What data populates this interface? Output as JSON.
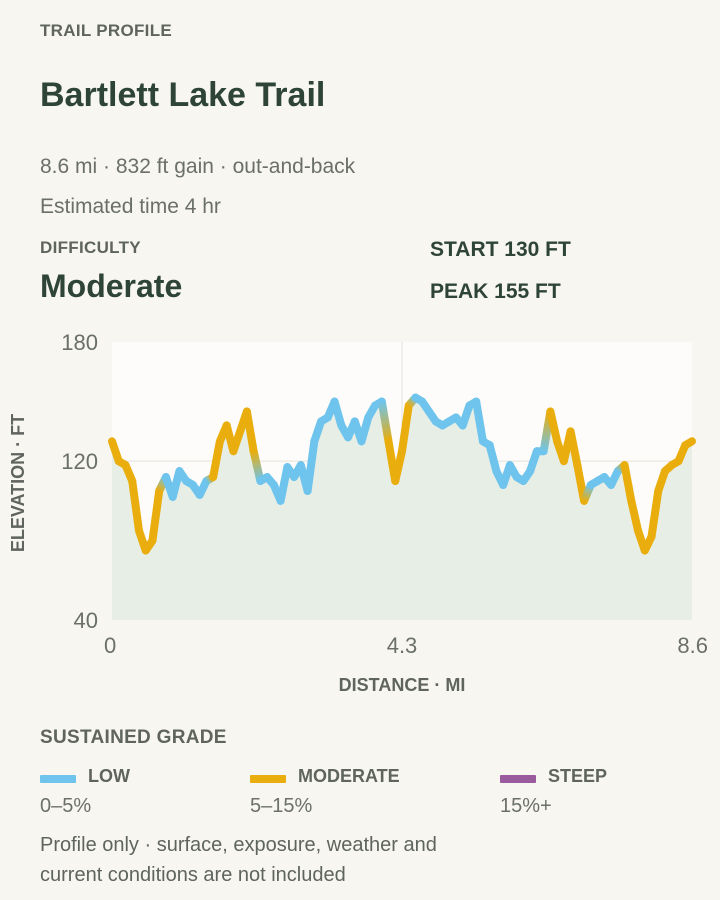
{
  "header": {
    "section_label": "TRAIL PROFILE"
  },
  "trail": {
    "name": "Bartlett Lake Trail",
    "stats_line": "8.6 mi · 832 ft gain · out-and-back",
    "time_line": "Estimated time 4 hr",
    "difficulty_label": "DIFFICULTY",
    "difficulty_value": "Moderate",
    "start_label": "START 130 FT",
    "peak_label": "PEAK 155 FT"
  },
  "chart_data": {
    "type": "line",
    "title": "",
    "xlabel": "DISTANCE · MI",
    "ylabel": "ELEVATION · FT",
    "xlim": [
      0,
      8.6
    ],
    "ylim": [
      40,
      180
    ],
    "x_ticks": [
      "0",
      "4.3",
      "8.6"
    ],
    "y_ticks": [
      "180",
      "120",
      "40"
    ],
    "grid": true,
    "area_fill": true,
    "x": [
      0,
      0.1,
      0.2,
      0.3,
      0.4,
      0.5,
      0.6,
      0.7,
      0.8,
      0.9,
      1.0,
      1.1,
      1.2,
      1.3,
      1.4,
      1.5,
      1.6,
      1.7,
      1.8,
      1.9,
      2.0,
      2.1,
      2.2,
      2.3,
      2.4,
      2.5,
      2.6,
      2.7,
      2.8,
      2.9,
      3.0,
      3.1,
      3.2,
      3.3,
      3.4,
      3.5,
      3.6,
      3.7,
      3.8,
      3.9,
      4.0,
      4.1,
      4.2,
      4.3,
      4.4,
      4.5,
      4.6,
      4.7,
      4.8,
      4.9,
      5.0,
      5.1,
      5.2,
      5.3,
      5.4,
      5.5,
      5.6,
      5.7,
      5.8,
      5.9,
      6.0,
      6.1,
      6.2,
      6.3,
      6.4,
      6.5,
      6.6,
      6.7,
      6.8,
      6.9,
      7.0,
      7.1,
      7.2,
      7.3,
      7.4,
      7.5,
      7.6,
      7.7,
      7.8,
      7.9,
      8.0,
      8.1,
      8.2,
      8.3,
      8.4,
      8.5,
      8.6
    ],
    "series": [
      {
        "values": [
          130,
          120,
          118,
          110,
          85,
          75,
          80,
          105,
          112,
          102,
          115,
          110,
          108,
          103,
          110,
          112,
          130,
          138,
          125,
          135,
          145,
          125,
          110,
          112,
          108,
          100,
          117,
          112,
          118,
          105,
          130,
          140,
          142,
          150,
          138,
          132,
          140,
          130,
          142,
          148,
          150,
          130,
          110,
          125,
          148,
          152,
          150,
          145,
          140,
          138,
          140,
          142,
          138,
          148,
          150,
          130,
          128,
          115,
          108,
          118,
          112,
          110,
          115,
          125,
          125,
          145,
          130,
          120,
          135,
          118,
          100,
          108,
          110,
          112,
          108,
          115,
          118,
          100,
          85,
          75,
          82,
          105,
          115,
          118,
          120,
          128,
          130
        ],
        "grade_colors": [
          "moderate",
          "moderate",
          "moderate",
          "moderate",
          "moderate",
          "moderate",
          "moderate",
          "moderate",
          "low",
          "low",
          "low",
          "low",
          "low",
          "low",
          "low",
          "moderate",
          "moderate",
          "moderate",
          "moderate",
          "moderate",
          "moderate",
          "moderate",
          "low",
          "low",
          "low",
          "low",
          "low",
          "low",
          "low",
          "low",
          "low",
          "low",
          "low",
          "low",
          "low",
          "low",
          "low",
          "low",
          "low",
          "low",
          "low",
          "moderate",
          "moderate",
          "moderate",
          "moderate",
          "low",
          "low",
          "low",
          "low",
          "low",
          "low",
          "low",
          "low",
          "low",
          "low",
          "low",
          "low",
          "low",
          "low",
          "low",
          "low",
          "low",
          "low",
          "low",
          "low",
          "moderate",
          "moderate",
          "moderate",
          "moderate",
          "moderate",
          "moderate",
          "low",
          "low",
          "low",
          "low",
          "low",
          "moderate",
          "moderate",
          "moderate",
          "moderate",
          "moderate",
          "moderate",
          "moderate",
          "moderate",
          "moderate",
          "moderate",
          "moderate"
        ]
      }
    ]
  },
  "legend": {
    "label": "SUSTAINED GRADE",
    "items": [
      {
        "name": "LOW",
        "range": "0–5%",
        "color": "#6ec4ec"
      },
      {
        "name": "MODERATE",
        "range": "5–15%",
        "color": "#e9ad0d"
      },
      {
        "name": "STEEP",
        "range": "15%+",
        "color": "#9a5a9e"
      }
    ]
  },
  "colors": {
    "low": "#6ec4ec",
    "moderate": "#e9ad0d",
    "steep": "#9a5a9e",
    "area": "#e6eee6",
    "plot_bg": "#fdfcfa"
  },
  "footnote": "Profile only · surface, exposure, weather and current conditions are not included"
}
